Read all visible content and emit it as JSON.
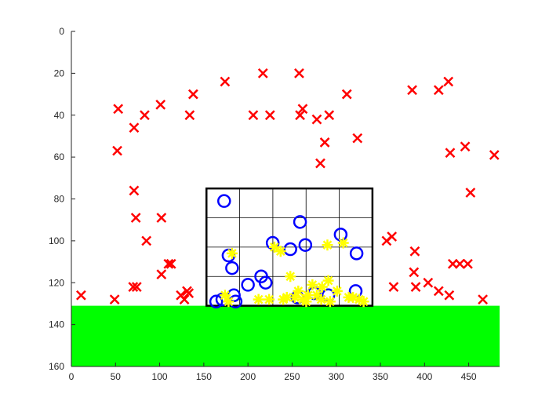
{
  "chart_data": {
    "type": "scatter",
    "title": "",
    "xlabel": "",
    "ylabel": "",
    "xlim": [
      0,
      485
    ],
    "ylim": [
      0,
      160
    ],
    "y_reversed": true,
    "grid": false,
    "xticks": [
      0,
      50,
      100,
      150,
      200,
      250,
      300,
      350,
      400,
      450
    ],
    "yticks": [
      0,
      20,
      40,
      60,
      80,
      100,
      120,
      140,
      160
    ],
    "ground": {
      "x": [
        0,
        485
      ],
      "y": [
        131,
        160
      ],
      "color": "#00ff00"
    },
    "box": {
      "x": [
        153,
        341
      ],
      "y": [
        75,
        131
      ],
      "color": "#000000",
      "grid_cols": 5,
      "grid_rows": 4
    },
    "series": [
      {
        "marker": "x",
        "color": "#ff0000",
        "points": [
          [
            11,
            126
          ],
          [
            49,
            128
          ],
          [
            53,
            37
          ],
          [
            52,
            57
          ],
          [
            71,
            46
          ],
          [
            71,
            76
          ],
          [
            73,
            89
          ],
          [
            83,
            40
          ],
          [
            85,
            100
          ],
          [
            101,
            35
          ],
          [
            102,
            89
          ],
          [
            102,
            116
          ],
          [
            110,
            111
          ],
          [
            113,
            111
          ],
          [
            70,
            122
          ],
          [
            74,
            122
          ],
          [
            124,
            126
          ],
          [
            128,
            128
          ],
          [
            131,
            124
          ],
          [
            133,
            125
          ],
          [
            134,
            40
          ],
          [
            138,
            30
          ],
          [
            174,
            24
          ],
          [
            206,
            40
          ],
          [
            217,
            20
          ],
          [
            225,
            40
          ],
          [
            258,
            20
          ],
          [
            259,
            40
          ],
          [
            262,
            37
          ],
          [
            278,
            42
          ],
          [
            282,
            63
          ],
          [
            287,
            53
          ],
          [
            292,
            40
          ],
          [
            312,
            30
          ],
          [
            324,
            51
          ],
          [
            357,
            100
          ],
          [
            363,
            98
          ],
          [
            365,
            122
          ],
          [
            386,
            28
          ],
          [
            389,
            105
          ],
          [
            388,
            115
          ],
          [
            390,
            122
          ],
          [
            404,
            120
          ],
          [
            416,
            124
          ],
          [
            428,
            126
          ],
          [
            416,
            28
          ],
          [
            427,
            24
          ],
          [
            429,
            58
          ],
          [
            432,
            111
          ],
          [
            440,
            111
          ],
          [
            446,
            55
          ],
          [
            449,
            111
          ],
          [
            452,
            77
          ],
          [
            466,
            128
          ],
          [
            479,
            59
          ]
        ]
      },
      {
        "marker": "o",
        "color": "#0000ff",
        "points": [
          [
            173,
            81
          ],
          [
            178,
            107
          ],
          [
            182,
            113
          ],
          [
            164,
            129
          ],
          [
            171,
            128
          ],
          [
            184,
            126
          ],
          [
            186,
            129
          ],
          [
            200,
            121
          ],
          [
            215,
            117
          ],
          [
            220,
            120
          ],
          [
            228,
            101
          ],
          [
            248,
            104
          ],
          [
            259,
            91
          ],
          [
            265,
            102
          ],
          [
            256,
            127
          ],
          [
            275,
            125
          ],
          [
            291,
            126
          ],
          [
            305,
            97
          ],
          [
            323,
            106
          ],
          [
            322,
            124
          ]
        ]
      },
      {
        "marker": "*",
        "color": "#ffff00",
        "points": [
          [
            174,
            126
          ],
          [
            182,
            106
          ],
          [
            178,
            129
          ],
          [
            212,
            128
          ],
          [
            224,
            128
          ],
          [
            230,
            103
          ],
          [
            237,
            105
          ],
          [
            244,
            127
          ],
          [
            248,
            117
          ],
          [
            253,
            127
          ],
          [
            257,
            124
          ],
          [
            262,
            128
          ],
          [
            268,
            126
          ],
          [
            273,
            121
          ],
          [
            278,
            126
          ],
          [
            283,
            128
          ],
          [
            284,
            122
          ],
          [
            291,
            119
          ],
          [
            290,
            102
          ],
          [
            301,
            124
          ],
          [
            308,
            101
          ],
          [
            314,
            127
          ],
          [
            319,
            127
          ],
          [
            326,
            128
          ],
          [
            331,
            129
          ],
          [
            240,
            128
          ],
          [
            266,
            129
          ],
          [
            293,
            129
          ]
        ]
      }
    ]
  }
}
